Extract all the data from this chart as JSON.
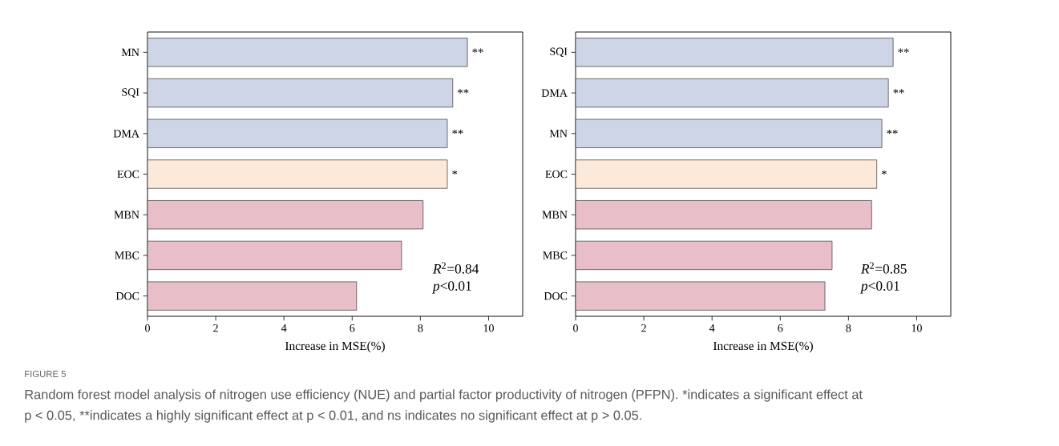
{
  "chart_data": [
    {
      "type": "bar",
      "orientation": "horizontal",
      "categories": [
        "MN",
        "SQI",
        "DMA",
        "EOC",
        "MBN",
        "MBC",
        "DOC"
      ],
      "values": [
        9.38,
        8.95,
        8.79,
        8.79,
        8.08,
        7.45,
        6.13
      ],
      "colors": [
        "#cdd5e6",
        "#cdd5e6",
        "#cdd5e6",
        "#fde9d9",
        "#e8bfc8",
        "#e8bfc8",
        "#e8bfc8"
      ],
      "xlabel": "Increase in MSE(%)",
      "xlim": [
        0,
        11
      ],
      "xticks": [
        0,
        2,
        4,
        6,
        8,
        10
      ],
      "annotations": [
        {
          "text": "**",
          "x": 9.38,
          "y": "MN"
        },
        {
          "text": "**",
          "x": 8.95,
          "y": "SQI"
        },
        {
          "text": "**",
          "x": 8.79,
          "y": "DMA"
        },
        {
          "text": "*",
          "x": 8.79,
          "y": "EOC"
        },
        "*R*$^{2}$=0.84",
        "*p*<0.01"
      ]
    },
    {
      "type": "bar",
      "orientation": "horizontal",
      "categories": [
        "SQI",
        "DMA",
        "MN",
        "EOC",
        "MBN",
        "MBC",
        "DOC"
      ],
      "values": [
        9.31,
        9.17,
        8.98,
        8.83,
        8.68,
        7.52,
        7.31
      ],
      "colors": [
        "#cdd5e6",
        "#cdd5e6",
        "#cdd5e6",
        "#fde9d9",
        "#e8bfc8",
        "#e8bfc8",
        "#e8bfc8"
      ],
      "xlabel": "Increase in MSE(%)",
      "xlim": [
        0,
        11
      ],
      "xticks": [
        0,
        2,
        4,
        6,
        8,
        10
      ],
      "annotations": [
        {
          "text": "**",
          "x": 9.31,
          "y": "SQI"
        },
        {
          "text": "**",
          "x": 9.17,
          "y": "DMA"
        },
        {
          "text": "**",
          "x": 8.98,
          "y": "MN"
        },
        {
          "text": "*",
          "x": 8.83,
          "y": "EOC"
        },
        "*R*$^{2}$=0.85",
        "*p*<0.01"
      ]
    },
    {
      "type": "other",
      "title": "FIGURE 5",
      "annotations": [
        "Random forest model analysis of nitrogen use efficiency (NUE) and partial factor productivity of nitrogen (PFPN). *indicates a significant effect at",
        "p < 0.05, **indicates a highly significant effect at p < 0.01, and ns indicates no significant effect at p > 0.05."
      ]
    }
  ]
}
